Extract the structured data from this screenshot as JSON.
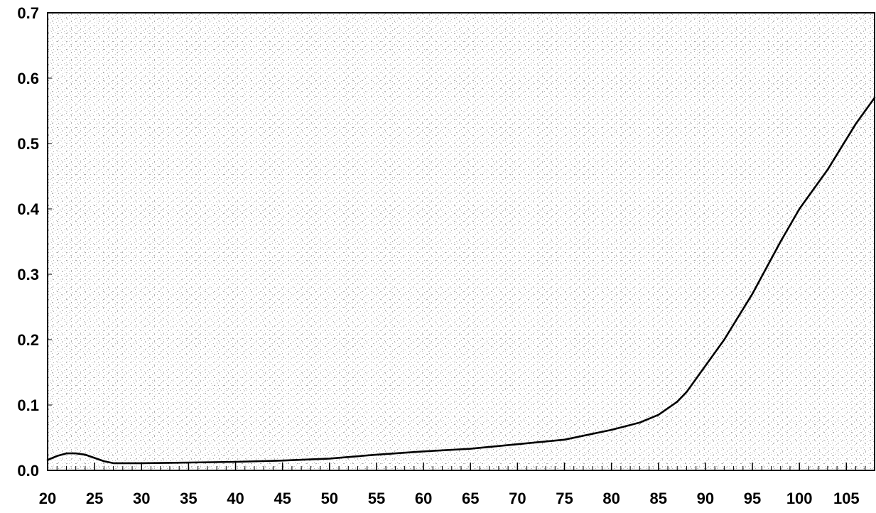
{
  "chart_data": {
    "type": "line",
    "title": "",
    "xlabel": "",
    "ylabel": "",
    "xlim": [
      20,
      108
    ],
    "ylim": [
      0,
      0.7
    ],
    "grid": false,
    "background": "stippled gray noise",
    "x_ticks": [
      20,
      25,
      30,
      35,
      40,
      45,
      50,
      55,
      60,
      65,
      70,
      75,
      80,
      85,
      90,
      95,
      100,
      105
    ],
    "x_tick_labels": [
      "20",
      "25",
      "30",
      "35",
      "40",
      "45",
      "50",
      "55",
      "60",
      "65",
      "70",
      "75",
      "80",
      "85",
      "90",
      "95",
      "100",
      "105"
    ],
    "y_ticks": [
      0.0,
      0.1,
      0.2,
      0.3,
      0.4,
      0.5,
      0.6,
      0.7
    ],
    "y_tick_labels": [
      "0.0",
      "0.1",
      "0.2",
      "0.3",
      "0.4",
      "0.5",
      "0.6",
      "0.7"
    ],
    "x_minor_tick_step": 1,
    "series": [
      {
        "color": "#000000",
        "x": [
          20,
          21,
          22,
          23,
          24,
          25,
          26,
          27,
          30,
          35,
          40,
          45,
          50,
          55,
          60,
          65,
          70,
          75,
          80,
          83,
          85,
          87,
          88,
          90,
          92,
          95,
          98,
          100,
          103,
          106,
          108
        ],
        "y": [
          0.016,
          0.022,
          0.026,
          0.026,
          0.024,
          0.019,
          0.014,
          0.011,
          0.011,
          0.012,
          0.013,
          0.015,
          0.018,
          0.024,
          0.029,
          0.033,
          0.04,
          0.047,
          0.062,
          0.073,
          0.085,
          0.105,
          0.12,
          0.16,
          0.2,
          0.27,
          0.35,
          0.4,
          0.46,
          0.53,
          0.57
        ]
      }
    ]
  }
}
